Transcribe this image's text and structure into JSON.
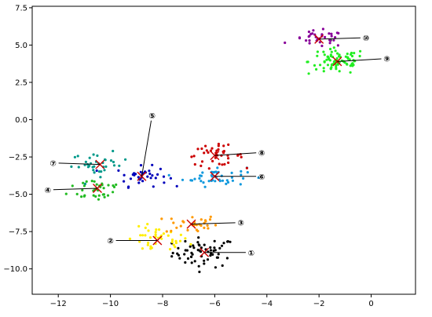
{
  "chart_data": {
    "type": "scatter",
    "xlim": [
      -13,
      1.7
    ],
    "ylim": [
      -11.7,
      7.6
    ],
    "x_ticks": [
      -12,
      -10,
      -8,
      -6,
      -4,
      -2,
      0
    ],
    "y_ticks": [
      -10.0,
      -7.5,
      -5.0,
      -2.5,
      0.0,
      2.5,
      5.0,
      7.5
    ],
    "x_tick_labels": [
      "−12",
      "−10",
      "−8",
      "−6",
      "−4",
      "−2",
      "0"
    ],
    "y_tick_labels": [
      "−10.0",
      "−7.5",
      "−5.0",
      "−2.5",
      "0.0",
      "2.5",
      "5.0",
      "7.5"
    ],
    "grid": false,
    "marker_color": "#cc0000",
    "clusters": [
      {
        "id": 1,
        "color": "#000000",
        "center": [
          -6.4,
          -8.9
        ],
        "spread": [
          1.1,
          0.9
        ],
        "count": 60
      },
      {
        "id": 2,
        "color": "#ffee00",
        "center": [
          -8.2,
          -8.1
        ],
        "spread": [
          1.1,
          0.8
        ],
        "count": 40
      },
      {
        "id": 3,
        "color": "#ff9900",
        "center": [
          -6.9,
          -7.0
        ],
        "spread": [
          0.9,
          0.6
        ],
        "count": 30
      },
      {
        "id": 4,
        "color": "#22bb22",
        "center": [
          -10.5,
          -4.6
        ],
        "spread": [
          1.0,
          0.8
        ],
        "count": 35
      },
      {
        "id": 5,
        "color": "#0000bb",
        "center": [
          -8.8,
          -3.8
        ],
        "spread": [
          0.9,
          0.6
        ],
        "count": 40
      },
      {
        "id": 6,
        "color": "#1199dd",
        "center": [
          -6.0,
          -3.8
        ],
        "spread": [
          1.1,
          0.6
        ],
        "count": 45
      },
      {
        "id": 7,
        "color": "#00998a",
        "center": [
          -10.4,
          -3.0
        ],
        "spread": [
          1.0,
          0.7
        ],
        "count": 35
      },
      {
        "id": 8,
        "color": "#cc0000",
        "center": [
          -6.0,
          -2.4
        ],
        "spread": [
          1.0,
          0.6
        ],
        "count": 40
      },
      {
        "id": 9,
        "color": "#22ee22",
        "center": [
          -1.3,
          3.9
        ],
        "spread": [
          1.0,
          0.8
        ],
        "count": 80
      },
      {
        "id": 10,
        "color": "#880099",
        "center": [
          -2.0,
          5.4
        ],
        "spread": [
          0.9,
          0.5
        ],
        "count": 35
      }
    ],
    "annotations": [
      {
        "label": "①",
        "cluster": 1,
        "text_at": [
          -4.6,
          -8.9
        ]
      },
      {
        "label": "②",
        "cluster": 2,
        "text_at": [
          -10.0,
          -8.1
        ]
      },
      {
        "label": "③",
        "cluster": 3,
        "text_at": [
          -5.0,
          -6.9
        ]
      },
      {
        "label": "④",
        "cluster": 4,
        "text_at": [
          -12.4,
          -4.7
        ]
      },
      {
        "label": "⑤",
        "cluster": 5,
        "text_at": [
          -8.4,
          0.3
        ]
      },
      {
        "label": "⑥",
        "cluster": 6,
        "text_at": [
          -4.2,
          -3.8
        ]
      },
      {
        "label": "⑦",
        "cluster": 7,
        "text_at": [
          -12.2,
          -2.9
        ]
      },
      {
        "label": "⑧",
        "cluster": 8,
        "text_at": [
          -4.2,
          -2.2
        ]
      },
      {
        "label": "⑨",
        "cluster": 9,
        "text_at": [
          0.6,
          4.1
        ]
      },
      {
        "label": "⑩",
        "cluster": 10,
        "text_at": [
          -0.2,
          5.5
        ]
      }
    ]
  }
}
